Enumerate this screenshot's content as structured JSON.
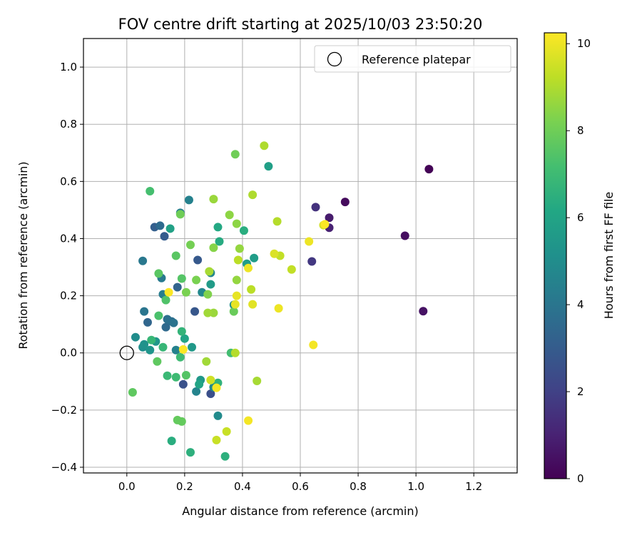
{
  "chart_data": {
    "type": "scatter",
    "title": "FOV centre drift starting at 2025/10/03 23:50:20",
    "xlabel": "Angular distance from reference (arcmin)",
    "ylabel": "Rotation from reference (arcmin)",
    "xlim": [
      -0.15,
      1.35
    ],
    "ylim": [
      -0.42,
      1.1
    ],
    "xticks": [
      0.0,
      0.2,
      0.4,
      0.6,
      0.8,
      1.0,
      1.2
    ],
    "xtick_labels": [
      "0.0",
      "0.2",
      "0.4",
      "0.6",
      "0.8",
      "1.0",
      "1.2"
    ],
    "yticks": [
      -0.4,
      -0.2,
      0.0,
      0.2,
      0.4,
      0.6,
      0.8,
      1.0
    ],
    "ytick_labels": [
      "−0.4",
      "−0.2",
      "0.0",
      "0.2",
      "0.4",
      "0.6",
      "0.8",
      "1.0"
    ],
    "grid": true,
    "legend": {
      "placement": "top-right",
      "entries": [
        "Reference platepar"
      ]
    },
    "reference_point": {
      "x": 0.0,
      "y": 0.0,
      "label": "Reference platepar"
    },
    "colorbar": {
      "label": "Hours from first FF file",
      "range": [
        0,
        10.25
      ],
      "ticks": [
        0,
        2,
        4,
        6,
        8,
        10
      ],
      "tick_labels": [
        "0",
        "2",
        "4",
        "6",
        "8",
        "10"
      ],
      "colormap": "viridis"
    },
    "points": [
      {
        "x": 1.045,
        "y": 0.643,
        "h": 0.05
      },
      {
        "x": 0.755,
        "y": 0.528,
        "h": 0.3
      },
      {
        "x": 0.962,
        "y": 0.41,
        "h": 0.4
      },
      {
        "x": 1.025,
        "y": 0.146,
        "h": 0.5
      },
      {
        "x": 0.7,
        "y": 0.473,
        "h": 0.8
      },
      {
        "x": 0.7,
        "y": 0.438,
        "h": 1.0
      },
      {
        "x": 0.653,
        "y": 0.51,
        "h": 1.5
      },
      {
        "x": 0.64,
        "y": 0.32,
        "h": 1.7
      },
      {
        "x": 0.29,
        "y": -0.143,
        "h": 2.5
      },
      {
        "x": 0.195,
        "y": -0.11,
        "h": 2.6
      },
      {
        "x": 0.235,
        "y": 0.145,
        "h": 2.8
      },
      {
        "x": 0.245,
        "y": 0.325,
        "h": 2.9
      },
      {
        "x": 0.13,
        "y": 0.408,
        "h": 3.0
      },
      {
        "x": 0.096,
        "y": 0.44,
        "h": 3.1
      },
      {
        "x": 0.175,
        "y": 0.23,
        "h": 3.3
      },
      {
        "x": 0.072,
        "y": 0.107,
        "h": 3.4
      },
      {
        "x": 0.135,
        "y": 0.09,
        "h": 3.5
      },
      {
        "x": 0.115,
        "y": 0.445,
        "h": 3.6
      },
      {
        "x": 0.155,
        "y": 0.11,
        "h": 3.7
      },
      {
        "x": 0.14,
        "y": 0.118,
        "h": 3.8
      },
      {
        "x": 0.162,
        "y": 0.105,
        "h": 3.9
      },
      {
        "x": 0.06,
        "y": 0.145,
        "h": 4.0
      },
      {
        "x": 0.055,
        "y": 0.322,
        "h": 4.1
      },
      {
        "x": 0.12,
        "y": 0.262,
        "h": 4.2
      },
      {
        "x": 0.125,
        "y": 0.205,
        "h": 4.3
      },
      {
        "x": 0.185,
        "y": 0.49,
        "h": 4.4
      },
      {
        "x": 0.215,
        "y": 0.535,
        "h": 4.5
      },
      {
        "x": 0.17,
        "y": 0.01,
        "h": 4.5
      },
      {
        "x": 0.24,
        "y": -0.135,
        "h": 4.6
      },
      {
        "x": 0.29,
        "y": 0.28,
        "h": 4.7
      },
      {
        "x": 0.26,
        "y": 0.212,
        "h": 4.8
      },
      {
        "x": 0.3,
        "y": -0.12,
        "h": 4.8
      },
      {
        "x": 0.315,
        "y": -0.22,
        "h": 4.9
      },
      {
        "x": 0.37,
        "y": 0.168,
        "h": 5.0
      },
      {
        "x": 0.03,
        "y": 0.055,
        "h": 5.0
      },
      {
        "x": 0.055,
        "y": 0.02,
        "h": 5.1
      },
      {
        "x": 0.06,
        "y": 0.03,
        "h": 5.2
      },
      {
        "x": 0.08,
        "y": 0.01,
        "h": 5.3
      },
      {
        "x": 0.1,
        "y": 0.04,
        "h": 5.4
      },
      {
        "x": 0.225,
        "y": 0.02,
        "h": 5.5
      },
      {
        "x": 0.255,
        "y": -0.095,
        "h": 5.5
      },
      {
        "x": 0.29,
        "y": 0.24,
        "h": 5.6
      },
      {
        "x": 0.415,
        "y": 0.312,
        "h": 5.7
      },
      {
        "x": 0.44,
        "y": 0.332,
        "h": 5.7
      },
      {
        "x": 0.49,
        "y": 0.653,
        "h": 5.8
      },
      {
        "x": 0.15,
        "y": 0.435,
        "h": 5.9
      },
      {
        "x": 0.2,
        "y": 0.05,
        "h": 6.0
      },
      {
        "x": 0.25,
        "y": -0.11,
        "h": 6.0
      },
      {
        "x": 0.315,
        "y": 0.44,
        "h": 6.2
      },
      {
        "x": 0.32,
        "y": 0.39,
        "h": 6.3
      },
      {
        "x": 0.405,
        "y": 0.428,
        "h": 6.4
      },
      {
        "x": 0.155,
        "y": -0.308,
        "h": 6.4
      },
      {
        "x": 0.22,
        "y": -0.348,
        "h": 6.5
      },
      {
        "x": 0.34,
        "y": -0.362,
        "h": 6.5
      },
      {
        "x": 0.315,
        "y": -0.105,
        "h": 6.6
      },
      {
        "x": 0.19,
        "y": 0.075,
        "h": 6.7
      },
      {
        "x": 0.085,
        "y": 0.045,
        "h": 6.8
      },
      {
        "x": 0.125,
        "y": 0.02,
        "h": 6.8
      },
      {
        "x": 0.14,
        "y": -0.08,
        "h": 6.9
      },
      {
        "x": 0.17,
        "y": -0.085,
        "h": 7.0
      },
      {
        "x": 0.185,
        "y": -0.015,
        "h": 7.0
      },
      {
        "x": 0.36,
        "y": 0.0,
        "h": 7.1
      },
      {
        "x": 0.08,
        "y": 0.566,
        "h": 7.2
      },
      {
        "x": 0.11,
        "y": 0.13,
        "h": 7.3
      },
      {
        "x": 0.135,
        "y": 0.185,
        "h": 7.4
      },
      {
        "x": 0.205,
        "y": -0.078,
        "h": 7.5
      },
      {
        "x": 0.19,
        "y": 0.26,
        "h": 7.5
      },
      {
        "x": 0.17,
        "y": 0.34,
        "h": 7.6
      },
      {
        "x": 0.11,
        "y": 0.278,
        "h": 7.6
      },
      {
        "x": 0.105,
        "y": -0.03,
        "h": 7.7
      },
      {
        "x": 0.02,
        "y": -0.138,
        "h": 7.7
      },
      {
        "x": 0.175,
        "y": -0.235,
        "h": 7.8
      },
      {
        "x": 0.19,
        "y": -0.24,
        "h": 7.8
      },
      {
        "x": 0.37,
        "y": 0.145,
        "h": 7.9
      },
      {
        "x": 0.375,
        "y": 0.695,
        "h": 8.0
      },
      {
        "x": 0.185,
        "y": 0.485,
        "h": 8.0
      },
      {
        "x": 0.22,
        "y": 0.378,
        "h": 8.1
      },
      {
        "x": 0.24,
        "y": 0.255,
        "h": 8.2
      },
      {
        "x": 0.205,
        "y": 0.212,
        "h": 8.2
      },
      {
        "x": 0.28,
        "y": 0.205,
        "h": 8.3
      },
      {
        "x": 0.3,
        "y": 0.368,
        "h": 8.4
      },
      {
        "x": 0.355,
        "y": 0.483,
        "h": 8.5
      },
      {
        "x": 0.38,
        "y": 0.452,
        "h": 8.5
      },
      {
        "x": 0.38,
        "y": 0.255,
        "h": 8.6
      },
      {
        "x": 0.39,
        "y": 0.365,
        "h": 8.6
      },
      {
        "x": 0.3,
        "y": 0.538,
        "h": 8.7
      },
      {
        "x": 0.3,
        "y": 0.14,
        "h": 8.7
      },
      {
        "x": 0.28,
        "y": 0.14,
        "h": 8.8
      },
      {
        "x": 0.275,
        "y": -0.03,
        "h": 8.8
      },
      {
        "x": 0.285,
        "y": 0.285,
        "h": 8.9
      },
      {
        "x": 0.45,
        "y": -0.098,
        "h": 8.9
      },
      {
        "x": 0.475,
        "y": 0.725,
        "h": 9.0
      },
      {
        "x": 0.435,
        "y": 0.553,
        "h": 9.0
      },
      {
        "x": 0.52,
        "y": 0.46,
        "h": 9.1
      },
      {
        "x": 0.375,
        "y": 0.0,
        "h": 9.1
      },
      {
        "x": 0.385,
        "y": 0.325,
        "h": 9.2
      },
      {
        "x": 0.43,
        "y": 0.222,
        "h": 9.2
      },
      {
        "x": 0.53,
        "y": 0.34,
        "h": 9.3
      },
      {
        "x": 0.57,
        "y": 0.292,
        "h": 9.3
      },
      {
        "x": 0.345,
        "y": -0.275,
        "h": 9.4
      },
      {
        "x": 0.31,
        "y": -0.305,
        "h": 9.4
      },
      {
        "x": 0.29,
        "y": -0.095,
        "h": 9.5
      },
      {
        "x": 0.68,
        "y": 0.447,
        "h": 9.6
      },
      {
        "x": 0.51,
        "y": 0.347,
        "h": 9.7
      },
      {
        "x": 0.435,
        "y": 0.17,
        "h": 9.8
      },
      {
        "x": 0.375,
        "y": 0.17,
        "h": 9.9
      },
      {
        "x": 0.38,
        "y": 0.2,
        "h": 9.9
      },
      {
        "x": 0.42,
        "y": 0.297,
        "h": 10.0
      },
      {
        "x": 0.525,
        "y": 0.156,
        "h": 10.0
      },
      {
        "x": 0.63,
        "y": 0.39,
        "h": 10.0
      },
      {
        "x": 0.645,
        "y": 0.028,
        "h": 10.1
      },
      {
        "x": 0.42,
        "y": -0.237,
        "h": 10.1
      },
      {
        "x": 0.31,
        "y": -0.122,
        "h": 10.1
      },
      {
        "x": 0.195,
        "y": 0.012,
        "h": 10.2
      },
      {
        "x": 0.145,
        "y": 0.212,
        "h": 10.2
      },
      {
        "x": 0.685,
        "y": 0.45,
        "h": 10.2
      }
    ]
  }
}
